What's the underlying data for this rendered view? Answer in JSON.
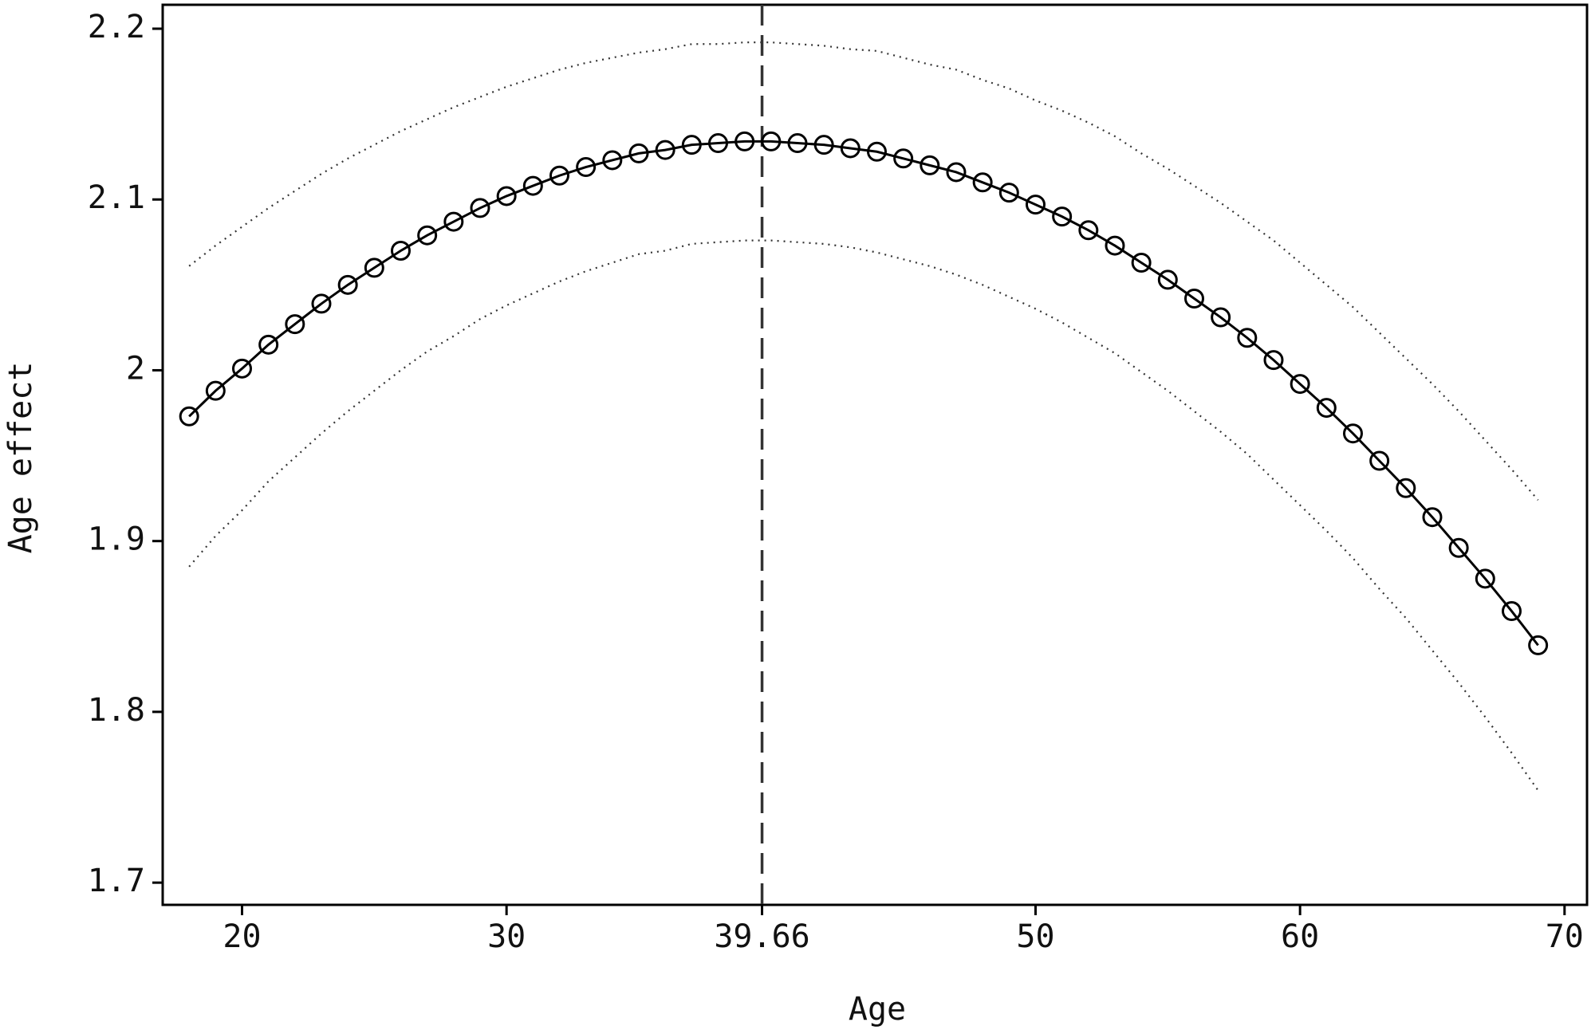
{
  "chart_data": {
    "type": "line",
    "x_label": "Age",
    "y_label": "Age effect",
    "x": [
      18,
      19,
      20,
      21,
      22,
      23,
      24,
      25,
      26,
      27,
      28,
      29,
      30,
      31,
      32,
      33,
      34,
      35,
      36,
      37,
      38,
      39,
      40,
      41,
      42,
      43,
      44,
      45,
      46,
      47,
      48,
      49,
      50,
      51,
      52,
      53,
      54,
      55,
      56,
      57,
      58,
      59,
      60,
      61,
      62,
      63,
      64,
      65,
      66,
      67,
      68,
      69
    ],
    "series": [
      {
        "color": "#000000",
        "line_style": "solid",
        "marker": "circle",
        "values": [
          1.973,
          1.988,
          2.001,
          2.015,
          2.027,
          2.039,
          2.05,
          2.06,
          2.07,
          2.079,
          2.087,
          2.095,
          2.102,
          2.108,
          2.114,
          2.119,
          2.123,
          2.127,
          2.129,
          2.132,
          2.133,
          2.134,
          2.134,
          2.133,
          2.132,
          2.13,
          2.128,
          2.124,
          2.12,
          2.116,
          2.11,
          2.104,
          2.097,
          2.09,
          2.082,
          2.073,
          2.063,
          2.053,
          2.042,
          2.031,
          2.019,
          2.006,
          1.992,
          1.978,
          1.963,
          1.947,
          1.931,
          1.914,
          1.896,
          1.878,
          1.859,
          1.839
        ]
      },
      {
        "color": "#333333",
        "line_style": "dotted",
        "values": [
          2.061,
          2.073,
          2.084,
          2.095,
          2.105,
          2.115,
          2.124,
          2.132,
          2.14,
          2.147,
          2.154,
          2.16,
          2.166,
          2.171,
          2.176,
          2.18,
          2.183,
          2.186,
          2.188,
          2.191,
          2.191,
          2.192,
          2.192,
          2.191,
          2.19,
          2.188,
          2.187,
          2.183,
          2.179,
          2.176,
          2.17,
          2.165,
          2.158,
          2.152,
          2.145,
          2.137,
          2.127,
          2.118,
          2.108,
          2.098,
          2.087,
          2.076,
          2.063,
          2.05,
          2.037,
          2.022,
          2.007,
          1.992,
          1.976,
          1.959,
          1.942,
          1.924
        ]
      },
      {
        "color": "#333333",
        "line_style": "dotted",
        "values": [
          1.885,
          1.903,
          1.918,
          1.935,
          1.949,
          1.963,
          1.976,
          1.988,
          2.0,
          2.011,
          2.02,
          2.03,
          2.038,
          2.045,
          2.052,
          2.058,
          2.063,
          2.068,
          2.07,
          2.074,
          2.075,
          2.076,
          2.076,
          2.075,
          2.074,
          2.072,
          2.069,
          2.065,
          2.061,
          2.056,
          2.05,
          2.043,
          2.036,
          2.028,
          2.019,
          2.01,
          1.999,
          1.988,
          1.976,
          1.964,
          1.951,
          1.936,
          1.921,
          1.906,
          1.89,
          1.872,
          1.855,
          1.836,
          1.817,
          1.797,
          1.776,
          1.754
        ]
      }
    ],
    "reference_line": 39.66,
    "xlim": [
      17,
      70.85
    ],
    "xticks": [
      20,
      30,
      39.66,
      50,
      60,
      70
    ],
    "ylim": [
      1.687,
      2.214
    ],
    "yticks": [
      {
        "value": 1.7,
        "label": "1.7"
      },
      {
        "value": 1.8,
        "label": "1.8"
      },
      {
        "value": 1.9,
        "label": "1.9"
      },
      2,
      {
        "value": 2.1,
        "label": "2.1"
      },
      {
        "value": 2.2,
        "label": "2.2"
      }
    ],
    "grid": false
  }
}
